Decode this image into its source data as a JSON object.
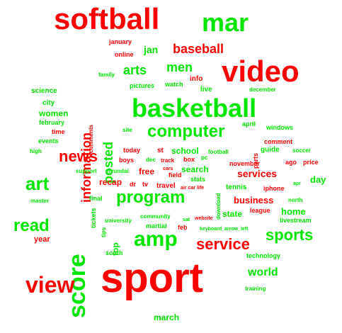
{
  "colors": {
    "red": "#ff0000",
    "green": "#00e600",
    "background": "#ffffff"
  },
  "words": [
    {
      "text": "softball",
      "color": "red"
    },
    {
      "text": "mar",
      "color": "green"
    },
    {
      "text": "video",
      "color": "red"
    },
    {
      "text": "basketball",
      "color": "green"
    },
    {
      "text": "sport",
      "color": "red"
    },
    {
      "text": "score",
      "color": "green"
    },
    {
      "text": "computer",
      "color": "green"
    },
    {
      "text": "program",
      "color": "green"
    },
    {
      "text": "amp",
      "color": "green"
    },
    {
      "text": "view",
      "color": "red"
    },
    {
      "text": "read",
      "color": "green"
    },
    {
      "text": "art",
      "color": "green"
    },
    {
      "text": "news",
      "color": "red"
    },
    {
      "text": "service",
      "color": "red"
    },
    {
      "text": "sports",
      "color": "green"
    },
    {
      "text": "baseball",
      "color": "red"
    },
    {
      "text": "information",
      "color": "red"
    },
    {
      "text": "posted",
      "color": "green"
    },
    {
      "text": "arts",
      "color": "green"
    },
    {
      "text": "men",
      "color": "green"
    },
    {
      "text": "jan",
      "color": "green"
    },
    {
      "text": "world",
      "color": "green"
    },
    {
      "text": "services",
      "color": "red"
    },
    {
      "text": "business",
      "color": "red"
    },
    {
      "text": "home",
      "color": "green"
    },
    {
      "text": "day",
      "color": "green"
    },
    {
      "text": "women",
      "color": "green"
    },
    {
      "text": "school",
      "color": "green"
    },
    {
      "text": "search",
      "color": "green"
    },
    {
      "text": "free",
      "color": "red"
    },
    {
      "text": "recap",
      "color": "red"
    },
    {
      "text": "state",
      "color": "green"
    },
    {
      "text": "top",
      "color": "green"
    },
    {
      "text": "year",
      "color": "red"
    },
    {
      "text": "march",
      "color": "green"
    },
    {
      "text": "january",
      "color": "red"
    },
    {
      "text": "online",
      "color": "red"
    },
    {
      "text": "family",
      "color": "green"
    },
    {
      "text": "pictures",
      "color": "green"
    },
    {
      "text": "watch",
      "color": "green"
    },
    {
      "text": "info",
      "color": "red"
    },
    {
      "text": "live",
      "color": "green"
    },
    {
      "text": "december",
      "color": "green"
    },
    {
      "text": "science",
      "color": "green"
    },
    {
      "text": "city",
      "color": "green"
    },
    {
      "text": "february",
      "color": "green"
    },
    {
      "text": "time",
      "color": "red"
    },
    {
      "text": "events",
      "color": "green"
    },
    {
      "text": "high",
      "color": "green"
    },
    {
      "text": "comments",
      "color": "red"
    },
    {
      "text": "site",
      "color": "green"
    },
    {
      "text": "april",
      "color": "green"
    },
    {
      "text": "windows",
      "color": "green"
    },
    {
      "text": "parts",
      "color": "red"
    },
    {
      "text": "comment",
      "color": "red"
    },
    {
      "text": "guide",
      "color": "green"
    },
    {
      "text": "soccer",
      "color": "green"
    },
    {
      "text": "today",
      "color": "red"
    },
    {
      "text": "st",
      "color": "red"
    },
    {
      "text": "pc",
      "color": "green"
    },
    {
      "text": "football",
      "color": "green"
    },
    {
      "text": "dec",
      "color": "green"
    },
    {
      "text": "track",
      "color": "red"
    },
    {
      "text": "box",
      "color": "red"
    },
    {
      "text": "ago",
      "color": "red"
    },
    {
      "text": "price",
      "color": "red"
    },
    {
      "text": "boys",
      "color": "red"
    },
    {
      "text": "field",
      "color": "red"
    },
    {
      "text": "stats",
      "color": "green"
    },
    {
      "text": "november",
      "color": "red"
    },
    {
      "text": "support",
      "color": "green"
    },
    {
      "text": "hyundai",
      "color": "green"
    },
    {
      "text": "cars",
      "color": "red"
    },
    {
      "text": "dr",
      "color": "red"
    },
    {
      "text": "tv",
      "color": "red"
    },
    {
      "text": "travel",
      "color": "red"
    },
    {
      "text": "air car life",
      "color": "red"
    },
    {
      "text": "download",
      "color": "green"
    },
    {
      "text": "tennis",
      "color": "green"
    },
    {
      "text": "iphone",
      "color": "red"
    },
    {
      "text": "apr",
      "color": "green"
    },
    {
      "text": "master",
      "color": "green"
    },
    {
      "text": "final",
      "color": "green"
    },
    {
      "text": "league",
      "color": "red"
    },
    {
      "text": "north",
      "color": "green"
    },
    {
      "text": "community",
      "color": "green"
    },
    {
      "text": "university",
      "color": "green"
    },
    {
      "text": "sat",
      "color": "green"
    },
    {
      "text": "website",
      "color": "red"
    },
    {
      "text": "tickets",
      "color": "green"
    },
    {
      "text": "martial",
      "color": "green"
    },
    {
      "text": "feb",
      "color": "red"
    },
    {
      "text": "keyboard_arrow_left",
      "color": "green"
    },
    {
      "text": "livestream",
      "color": "green"
    },
    {
      "text": "tips",
      "color": "green"
    },
    {
      "text": "south",
      "color": "green"
    },
    {
      "text": "technology",
      "color": "green"
    },
    {
      "text": "training",
      "color": "green"
    }
  ]
}
